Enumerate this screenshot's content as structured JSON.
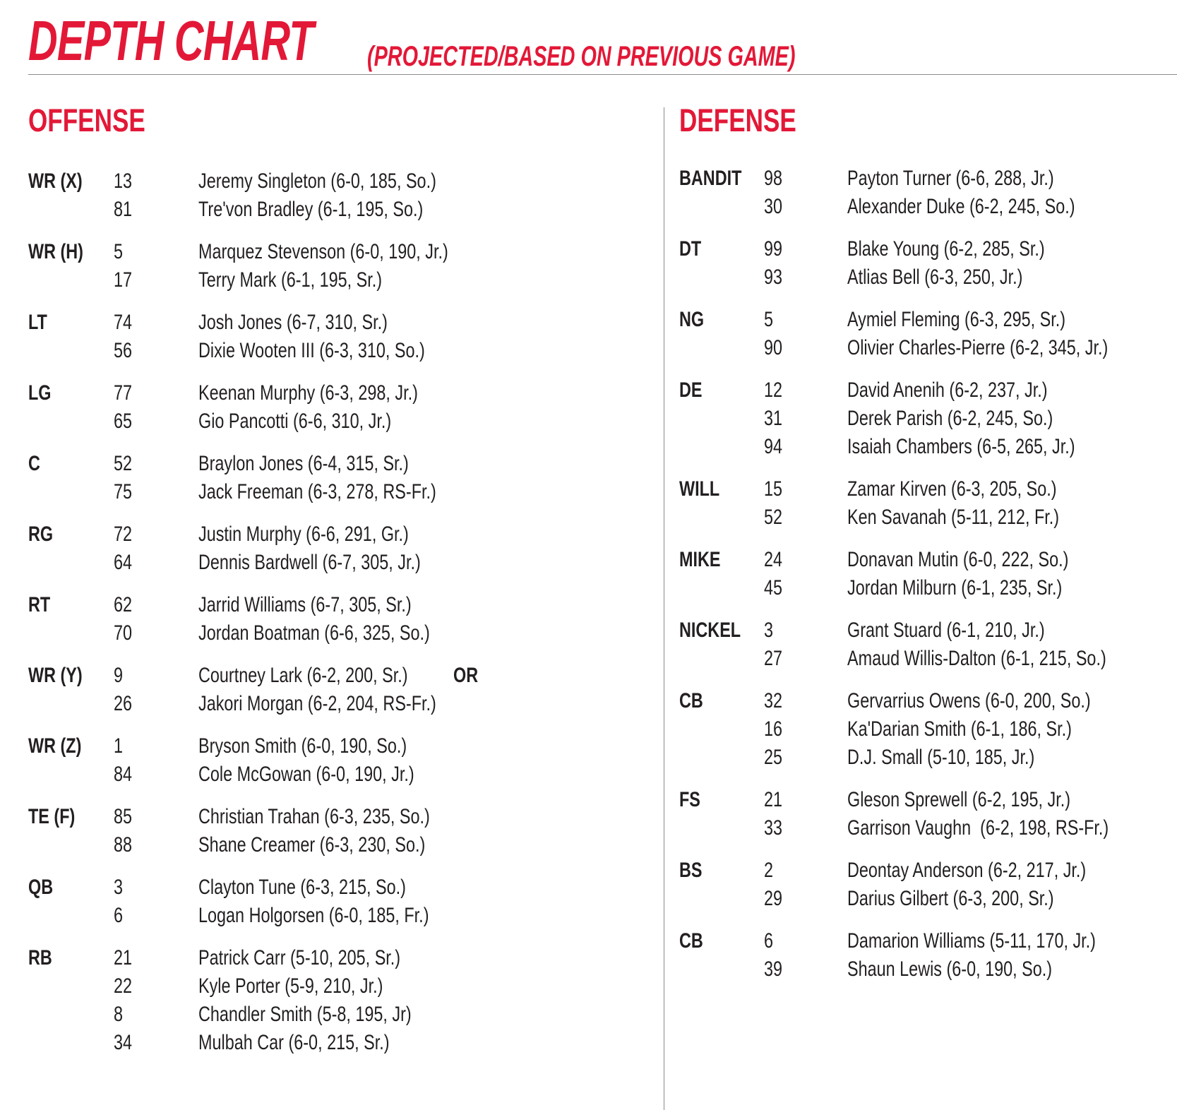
{
  "header": {
    "title": "DEPTH CHART",
    "subtitle": "(PROJECTED/BASED ON PREVIOUS GAME)"
  },
  "offense": {
    "title": "OFFENSE",
    "groups": [
      {
        "pos": "WR (X)",
        "players": [
          {
            "num": "13",
            "name": "Jeremy Singleton (6-0, 185, So.)"
          },
          {
            "num": "81",
            "name": "Tre'von Bradley (6-1, 195, So.)"
          }
        ]
      },
      {
        "pos": "WR (H)",
        "players": [
          {
            "num": "5",
            "name": "Marquez Stevenson (6-0, 190, Jr.)"
          },
          {
            "num": "17",
            "name": "Terry Mark (6-1, 195, Sr.)"
          }
        ]
      },
      {
        "pos": "LT",
        "players": [
          {
            "num": "74",
            "name": "Josh Jones (6-7, 310, Sr.)"
          },
          {
            "num": "56",
            "name": "Dixie Wooten III (6-3, 310, So.)"
          }
        ]
      },
      {
        "pos": "LG",
        "players": [
          {
            "num": "77",
            "name": "Keenan Murphy (6-3, 298, Jr.)"
          },
          {
            "num": "65",
            "name": "Gio Pancotti (6-6, 310, Jr.)"
          }
        ]
      },
      {
        "pos": "C",
        "players": [
          {
            "num": "52",
            "name": "Braylon Jones (6-4, 315, Sr.)"
          },
          {
            "num": "75",
            "name": "Jack Freeman (6-3, 278, RS-Fr.)"
          }
        ]
      },
      {
        "pos": "RG",
        "players": [
          {
            "num": "72",
            "name": "Justin Murphy (6-6, 291, Gr.)"
          },
          {
            "num": "64",
            "name": "Dennis Bardwell (6-7, 305, Jr.)"
          }
        ]
      },
      {
        "pos": "RT",
        "players": [
          {
            "num": "62",
            "name": "Jarrid Williams (6-7, 305, Sr.)"
          },
          {
            "num": "70",
            "name": "Jordan Boatman (6-6, 325, So.)"
          }
        ]
      },
      {
        "pos": "WR (Y)",
        "or": "OR",
        "players": [
          {
            "num": "9",
            "name": "Courtney Lark (6-2, 200, Sr.)"
          },
          {
            "num": "26",
            "name": "Jakori Morgan (6-2, 204, RS-Fr.)"
          }
        ]
      },
      {
        "pos": "WR (Z)",
        "players": [
          {
            "num": "1",
            "name": "Bryson Smith (6-0, 190, So.)"
          },
          {
            "num": "84",
            "name": "Cole McGowan (6-0, 190, Jr.)"
          }
        ]
      },
      {
        "pos": "TE (F)",
        "players": [
          {
            "num": "85",
            "name": "Christian Trahan (6-3, 235, So.)"
          },
          {
            "num": "88",
            "name": "Shane Creamer (6-3, 230, So.)"
          }
        ]
      },
      {
        "pos": "QB",
        "players": [
          {
            "num": "3",
            "name": "Clayton Tune (6-3, 215, So.)"
          },
          {
            "num": "6",
            "name": "Logan Holgorsen (6-0, 185, Fr.)"
          }
        ]
      },
      {
        "pos": "RB",
        "players": [
          {
            "num": "21",
            "name": "Patrick Carr (5-10, 205, Sr.)"
          },
          {
            "num": "22",
            "name": "Kyle Porter (5-9, 210, Jr.)"
          },
          {
            "num": "8",
            "name": "Chandler Smith (5-8, 195, Jr)"
          },
          {
            "num": "34",
            "name": "Mulbah Car (6-0, 215, Sr.)"
          }
        ]
      }
    ]
  },
  "defense": {
    "title": "DEFENSE",
    "groups": [
      {
        "pos": "BANDIT",
        "players": [
          {
            "num": "98",
            "name": "Payton Turner (6-6, 288, Jr.)"
          },
          {
            "num": "30",
            "name": "Alexander Duke (6-2, 245, So.)"
          }
        ]
      },
      {
        "pos": "DT",
        "players": [
          {
            "num": "99",
            "name": "Blake Young (6-2, 285, Sr.)"
          },
          {
            "num": "93",
            "name": "Atlias Bell (6-3, 250, Jr.)"
          }
        ]
      },
      {
        "pos": "NG",
        "players": [
          {
            "num": "5",
            "name": "Aymiel Fleming (6-3, 295, Sr.)"
          },
          {
            "num": "90",
            "name": "Olivier Charles-Pierre (6-2, 345, Jr.)"
          }
        ]
      },
      {
        "pos": "DE",
        "players": [
          {
            "num": "12",
            "name": "David Anenih (6-2, 237, Jr.)"
          },
          {
            "num": "31",
            "name": "Derek Parish (6-2, 245, So.)"
          },
          {
            "num": "94",
            "name": "Isaiah Chambers (6-5, 265, Jr.)"
          }
        ]
      },
      {
        "pos": "WILL",
        "players": [
          {
            "num": "15",
            "name": "Zamar Kirven (6-3, 205, So.)"
          },
          {
            "num": "52",
            "name": "Ken Savanah (5-11, 212, Fr.)"
          }
        ]
      },
      {
        "pos": "MIKE",
        "players": [
          {
            "num": "24",
            "name": "Donavan Mutin (6-0, 222, So.)"
          },
          {
            "num": "45",
            "name": "Jordan Milburn (6-1, 235, Sr.)"
          }
        ]
      },
      {
        "pos": "NICKEL",
        "players": [
          {
            "num": "3",
            "name": "Grant Stuard (6-1, 210, Jr.)"
          },
          {
            "num": "27",
            "name": "Amaud Willis-Dalton (6-1, 215, So.)"
          }
        ]
      },
      {
        "pos": "CB",
        "players": [
          {
            "num": "32",
            "name": "Gervarrius Owens (6-0, 200, So.)"
          },
          {
            "num": "16",
            "name": "Ka'Darian Smith (6-1, 186, Sr.)"
          },
          {
            "num": "25",
            "name": "D.J. Small (5-10, 185, Jr.)"
          }
        ]
      },
      {
        "pos": "FS",
        "players": [
          {
            "num": "21",
            "name": "Gleson Sprewell (6-2, 195, Jr.)"
          },
          {
            "num": "33",
            "name": "Garrison Vaughn  (6-2, 198, RS-Fr.)"
          }
        ]
      },
      {
        "pos": "BS",
        "players": [
          {
            "num": "2",
            "name": "Deontay Anderson (6-2, 217, Jr.)"
          },
          {
            "num": "29",
            "name": "Darius Gilbert (6-3, 200, Sr.)"
          }
        ]
      },
      {
        "pos": "CB",
        "players": [
          {
            "num": "6",
            "name": "Damarion Williams (5-11, 170, Jr.)"
          },
          {
            "num": "39",
            "name": "Shaun Lewis (6-0, 190, So.)"
          }
        ]
      }
    ]
  }
}
